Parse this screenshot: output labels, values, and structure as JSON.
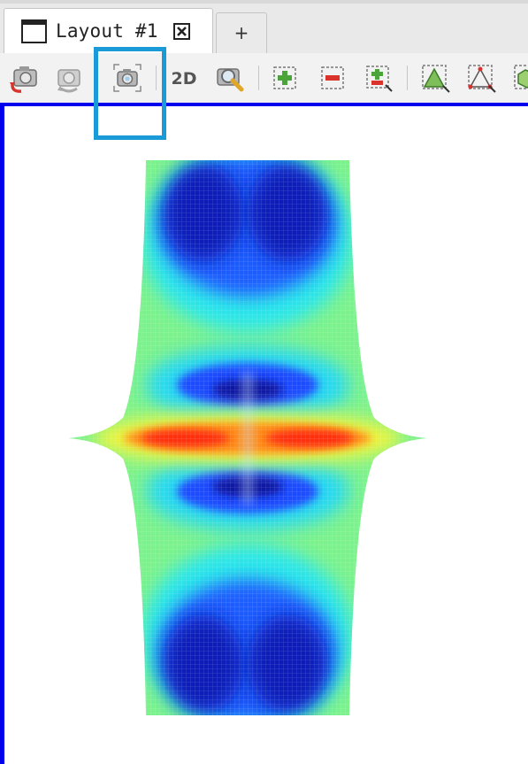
{
  "tabs": {
    "active": {
      "label": "Layout #1"
    },
    "new_tab": {
      "label": "+"
    }
  },
  "toolbar": {
    "buttons": [
      {
        "name": "reset-camera-button",
        "icon": "camera-reset-icon"
      },
      {
        "name": "restore-camera-button",
        "icon": "camera-restore-icon"
      },
      {
        "name": "capture-screenshot-button",
        "icon": "camera-icon",
        "highlighted": true
      },
      {
        "name": "toggle-2d-button",
        "label": "2D"
      },
      {
        "name": "zoom-to-box-button",
        "icon": "zoom-magnifier-icon"
      },
      {
        "name": "select-cells-on-button",
        "icon": "select-cells-add-icon"
      },
      {
        "name": "select-cells-off-button",
        "icon": "select-cells-remove-icon"
      },
      {
        "name": "select-points-on-button",
        "icon": "select-points-add-icon"
      },
      {
        "name": "select-triangle-button",
        "icon": "triangle-select-icon"
      },
      {
        "name": "select-vertices-button",
        "icon": "vertex-select-icon"
      },
      {
        "name": "select-block-button",
        "icon": "block-select-icon"
      }
    ]
  },
  "viewport": {
    "border_color": "#0000ee",
    "background": "#ffffff",
    "colormap": [
      "#00007f",
      "#0000ff",
      "#00ffff",
      "#7fff7f",
      "#ffff00",
      "#ff0000"
    ]
  },
  "colors": {
    "highlight": "#1a9ad6",
    "tab_background": "#ffffff",
    "toolbar_background": "#f2f2f2"
  }
}
